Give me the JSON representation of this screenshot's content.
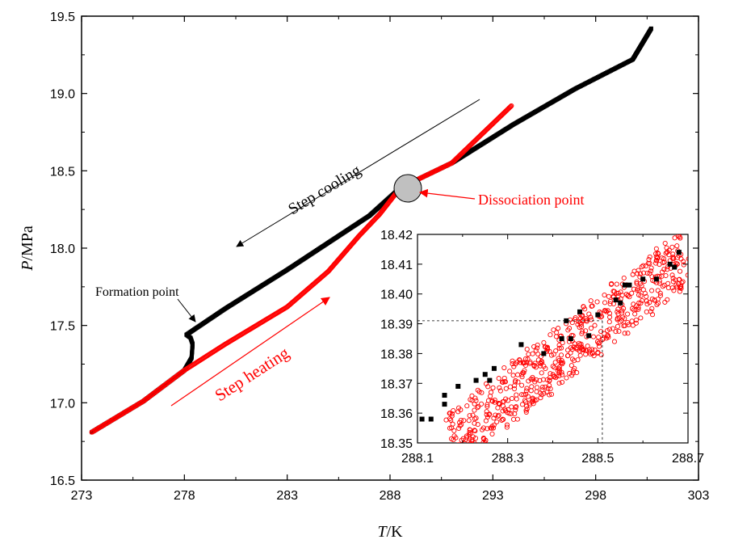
{
  "chart_data": [
    {
      "type": "scatter",
      "xlabel": "T/K",
      "ylabel": "P/MPa",
      "xlabel_parts": {
        "var": "T",
        "unit": "/K"
      },
      "ylabel_parts": {
        "var": "P",
        "unit": "/MPa"
      },
      "xlim": [
        273,
        303
      ],
      "ylim": [
        16.5,
        19.5
      ],
      "x_ticks": [
        "273",
        "278",
        "283",
        "288",
        "293",
        "298",
        "303"
      ],
      "y_ticks": [
        "16.5",
        "17.0",
        "17.5",
        "18.0",
        "18.5",
        "19.0",
        "19.5"
      ],
      "grid": false,
      "series": [
        {
          "color": "#000000",
          "marker": "filled-square",
          "points": [
            [
              273.5,
              16.81
            ],
            [
              276,
              17.01
            ],
            [
              278,
              17.21
            ],
            [
              278.35,
              17.29
            ],
            [
              278.4,
              17.38
            ],
            [
              278.3,
              17.42
            ],
            [
              278.1,
              17.44
            ],
            [
              280,
              17.61
            ],
            [
              283,
              17.86
            ],
            [
              287,
              18.21
            ],
            [
              288.5,
              18.39
            ],
            [
              291,
              18.55
            ],
            [
              294,
              18.8
            ],
            [
              297,
              19.03
            ],
            [
              299.8,
              19.22
            ],
            [
              300.7,
              19.42
            ]
          ]
        },
        {
          "color": "#ff0000",
          "marker": "open-circle",
          "points": [
            [
              273.5,
              16.81
            ],
            [
              276,
              17.01
            ],
            [
              278,
              17.21
            ],
            [
              280,
              17.38
            ],
            [
              283,
              17.62
            ],
            [
              285,
              17.85
            ],
            [
              286.5,
              18.08
            ],
            [
              287.5,
              18.22
            ],
            [
              288.5,
              18.39
            ],
            [
              291,
              18.55
            ],
            [
              293.9,
              18.92
            ]
          ]
        }
      ],
      "annotations": [
        {
          "text": "Step cooling",
          "color": "#000000"
        },
        {
          "text": "Step heating",
          "color": "#ff0000"
        },
        {
          "text": "Dissociation point",
          "color": "#ff0000"
        },
        {
          "text": "Formation point",
          "color": "#000000"
        }
      ]
    },
    {
      "type": "scatter",
      "role": "inset",
      "xlim": [
        288.1,
        288.7
      ],
      "ylim": [
        18.35,
        18.42
      ],
      "x_ticks": [
        "288.1",
        "288.3",
        "288.5",
        "288.7"
      ],
      "y_ticks": [
        "18.35",
        "18.36",
        "18.37",
        "18.38",
        "18.39",
        "18.40",
        "18.41",
        "18.42"
      ],
      "reference_point": {
        "x": 288.51,
        "y": 18.391,
        "style": "dashed"
      },
      "series": [
        {
          "color": "#000000",
          "marker": "filled-square",
          "points": [
            [
              288.11,
              18.358
            ],
            [
              288.13,
              18.358
            ],
            [
              288.16,
              18.363
            ],
            [
              288.16,
              18.366
            ],
            [
              288.19,
              18.369
            ],
            [
              288.23,
              18.371
            ],
            [
              288.25,
              18.373
            ],
            [
              288.26,
              18.371
            ],
            [
              288.27,
              18.375
            ],
            [
              288.33,
              18.383
            ],
            [
              288.38,
              18.38
            ],
            [
              288.42,
              18.385
            ],
            [
              288.43,
              18.391
            ],
            [
              288.44,
              18.385
            ],
            [
              288.46,
              18.394
            ],
            [
              288.48,
              18.386
            ],
            [
              288.5,
              18.393
            ],
            [
              288.54,
              18.398
            ],
            [
              288.56,
              18.403
            ],
            [
              288.55,
              18.397
            ],
            [
              288.57,
              18.403
            ],
            [
              288.6,
              18.405
            ],
            [
              288.63,
              18.405
            ],
            [
              288.66,
              18.41
            ],
            [
              288.67,
              18.409
            ],
            [
              288.68,
              18.414
            ]
          ]
        },
        {
          "color": "#ff0000",
          "marker": "open-circle",
          "band": {
            "from": [
              288.17,
              18.35
            ],
            "to": [
              288.7,
              18.413
            ],
            "spread": 0.01
          }
        }
      ]
    }
  ]
}
